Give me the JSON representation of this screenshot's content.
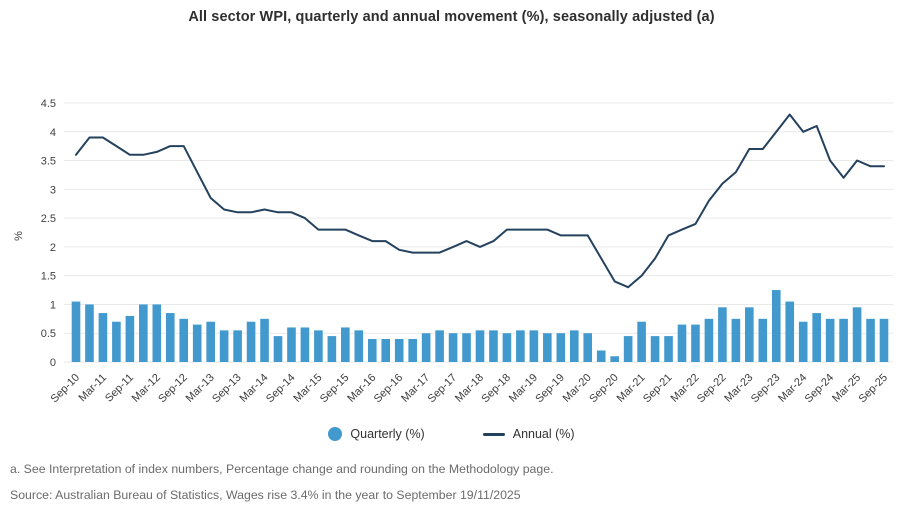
{
  "page": {
    "title": "All sector WPI, quarterly and annual movement (%), seasonally adjusted (a)"
  },
  "footnotes": {
    "note_a": "a. See Interpretation of index numbers, Percentage change and rounding on the Methodology page.",
    "source": "Source: Australian Bureau of Statistics, Wages rise 3.4% in the year to September 19/11/2025"
  },
  "colors": {
    "bar": "#4299CE",
    "line": "#24425E",
    "grid": "#E9E9E9",
    "axis_text": "#414141",
    "tick_label_text": "#3D3D3D",
    "footer_text": "#6B6B6B",
    "title_text": "#2F2F2F"
  },
  "chart_data": {
    "type": "combo",
    "title": "All sector WPI, quarterly and annual movement (%), seasonally adjusted (a)",
    "xlabel": "",
    "ylabel": "%",
    "ylim": [
      0,
      4.5
    ],
    "ytick_step": 0.5,
    "xtick_every": 2,
    "grid": true,
    "legend_position": "bottom",
    "categories": [
      "Sep-10",
      "Dec-10",
      "Mar-11",
      "Jun-11",
      "Sep-11",
      "Dec-11",
      "Mar-12",
      "Jun-12",
      "Sep-12",
      "Dec-12",
      "Mar-13",
      "Jun-13",
      "Sep-13",
      "Dec-13",
      "Mar-14",
      "Jun-14",
      "Sep-14",
      "Dec-14",
      "Mar-15",
      "Jun-15",
      "Sep-15",
      "Dec-15",
      "Mar-16",
      "Jun-16",
      "Sep-16",
      "Dec-16",
      "Mar-17",
      "Jun-17",
      "Sep-17",
      "Dec-17",
      "Mar-18",
      "Jun-18",
      "Sep-18",
      "Dec-18",
      "Mar-19",
      "Jun-19",
      "Sep-19",
      "Dec-19",
      "Mar-20",
      "Jun-20",
      "Sep-20",
      "Dec-20",
      "Mar-21",
      "Jun-21",
      "Sep-21",
      "Dec-21",
      "Mar-22",
      "Jun-22",
      "Sep-22",
      "Dec-22",
      "Mar-23",
      "Jun-23",
      "Sep-23",
      "Dec-23",
      "Mar-24",
      "Jun-24",
      "Sep-24",
      "Dec-24",
      "Mar-25",
      "Jun-25",
      "Sep-25"
    ],
    "series": [
      {
        "name": "Quarterly (%)",
        "type": "bar",
        "color": "#4299CE",
        "values": [
          1.05,
          1.0,
          0.85,
          0.7,
          0.8,
          1.0,
          1.0,
          0.85,
          0.75,
          0.65,
          0.7,
          0.55,
          0.55,
          0.7,
          0.75,
          0.45,
          0.6,
          0.6,
          0.55,
          0.45,
          0.6,
          0.55,
          0.4,
          0.4,
          0.4,
          0.4,
          0.5,
          0.55,
          0.5,
          0.5,
          0.55,
          0.55,
          0.5,
          0.55,
          0.55,
          0.5,
          0.5,
          0.55,
          0.5,
          0.2,
          0.1,
          0.45,
          0.7,
          0.45,
          0.45,
          0.65,
          0.65,
          0.75,
          0.95,
          0.75,
          0.95,
          0.75,
          1.25,
          1.05,
          0.7,
          0.85,
          0.75,
          0.75,
          0.95,
          0.75,
          0.75
        ]
      },
      {
        "name": "Annual (%)",
        "type": "line",
        "color": "#24425E",
        "values": [
          3.6,
          3.9,
          3.9,
          3.75,
          3.6,
          3.6,
          3.65,
          3.75,
          3.75,
          3.3,
          2.85,
          2.65,
          2.6,
          2.6,
          2.65,
          2.6,
          2.6,
          2.5,
          2.3,
          2.3,
          2.3,
          2.2,
          2.1,
          2.1,
          1.95,
          1.9,
          1.9,
          1.9,
          2.0,
          2.1,
          2.0,
          2.1,
          2.3,
          2.3,
          2.3,
          2.3,
          2.2,
          2.2,
          2.2,
          1.8,
          1.4,
          1.3,
          1.5,
          1.8,
          2.2,
          2.3,
          2.4,
          2.8,
          3.1,
          3.3,
          3.7,
          3.7,
          4.0,
          4.3,
          4.0,
          4.1,
          3.5,
          3.2,
          3.5,
          3.4,
          3.4
        ]
      }
    ]
  }
}
